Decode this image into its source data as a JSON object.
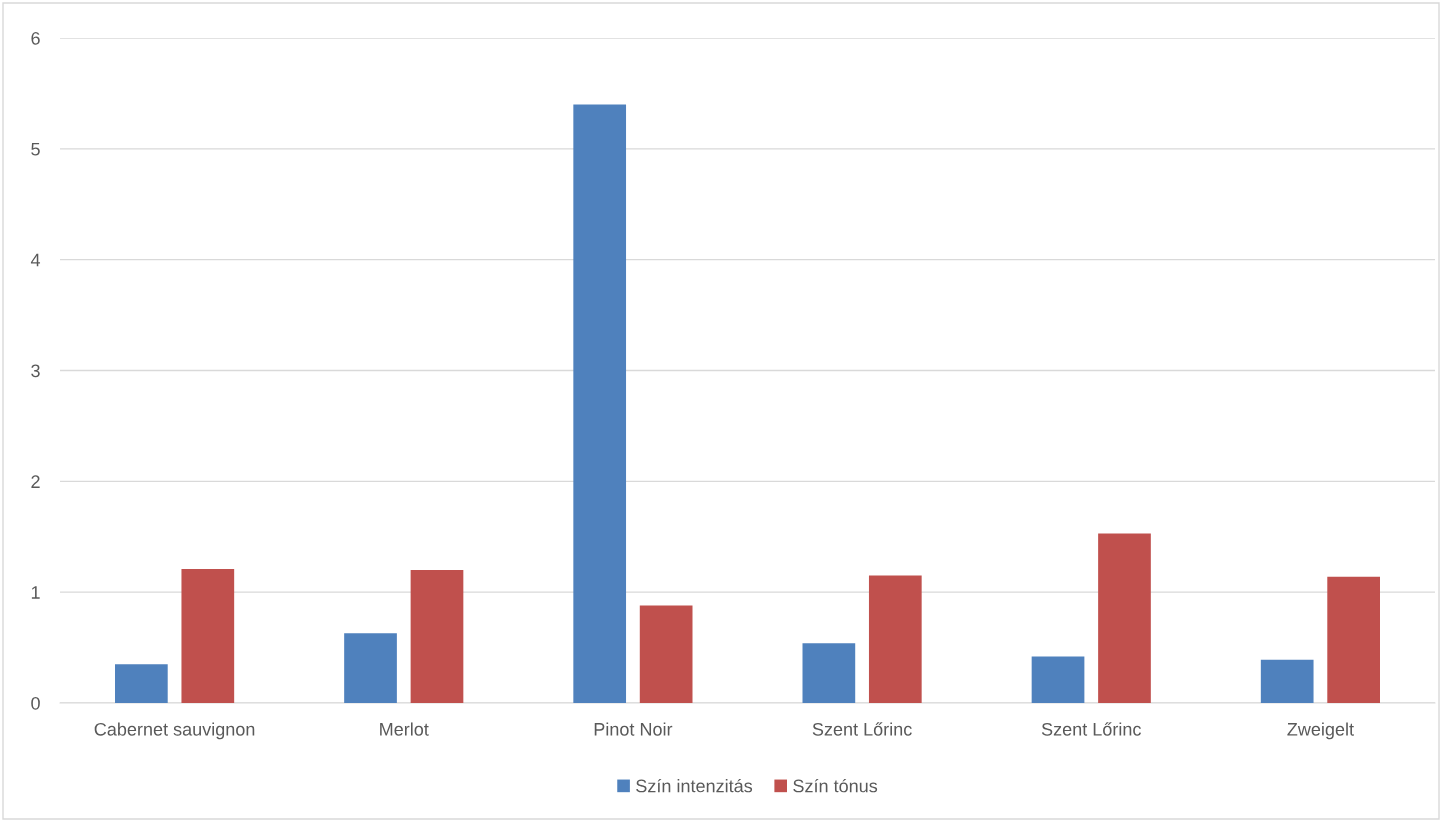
{
  "chart_data": {
    "type": "bar",
    "categories": [
      "Cabernet sauvignon",
      "Merlot",
      "Pinot Noir",
      "Szent Lőrinc",
      "Szent Lőrinc",
      "Zweigelt"
    ],
    "series": [
      {
        "name": "Szín intenzitás",
        "color": "#4f81bd",
        "values": [
          0.35,
          0.63,
          5.4,
          0.54,
          0.42,
          0.39
        ]
      },
      {
        "name": "Szín tónus",
        "color": "#c0504d",
        "values": [
          1.21,
          1.2,
          0.88,
          1.15,
          1.53,
          1.14
        ]
      }
    ],
    "ylim": [
      0,
      6
    ],
    "yticks": [
      0,
      1,
      2,
      3,
      4,
      5,
      6
    ],
    "grid": "y",
    "legend": "bottom"
  }
}
